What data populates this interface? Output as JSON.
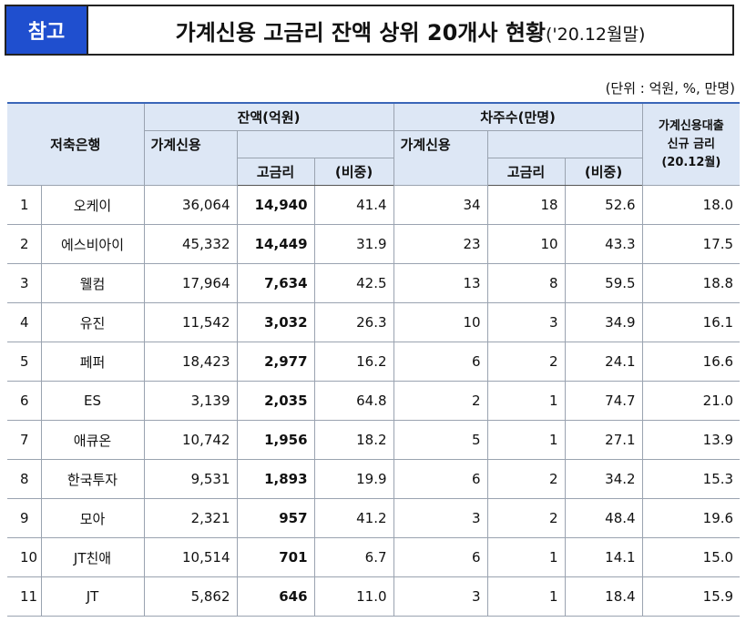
{
  "header": {
    "tag": "참고",
    "title": "가계신용 고금리 잔액 상위 20개사 현황",
    "subtitle": "('20.12월말)",
    "unit": "(단위 : 억원, %, 만명)"
  },
  "table": {
    "columns": {
      "bank": "저축은행",
      "balance": "잔액(억원)",
      "borrowers": "차주수(만명)",
      "household": "가계신용",
      "household2": "가계신용",
      "high": "고금리",
      "share": "(비중)",
      "high2": "고금리",
      "share2": "(비중)",
      "rate": [
        "가계신용대출",
        "신규 금리",
        "(20.12월)"
      ]
    },
    "rows": [
      [
        "1",
        "오케이",
        "36,064",
        "14,940",
        "41.4",
        "34",
        "18",
        "52.6",
        "18.0"
      ],
      [
        "2",
        "에스비아이",
        "45,332",
        "14,449",
        "31.9",
        "23",
        "10",
        "43.3",
        "17.5"
      ],
      [
        "3",
        "웰컴",
        "17,964",
        "7,634",
        "42.5",
        "13",
        "8",
        "59.5",
        "18.8"
      ],
      [
        "4",
        "유진",
        "11,542",
        "3,032",
        "26.3",
        "10",
        "3",
        "34.9",
        "16.1"
      ],
      [
        "5",
        "페퍼",
        "18,423",
        "2,977",
        "16.2",
        "6",
        "2",
        "24.1",
        "16.6"
      ],
      [
        "6",
        "ES",
        "3,139",
        "2,035",
        "64.8",
        "2",
        "1",
        "74.7",
        "21.0"
      ],
      [
        "7",
        "애큐온",
        "10,742",
        "1,956",
        "18.2",
        "5",
        "1",
        "27.1",
        "13.9"
      ],
      [
        "8",
        "한국투자",
        "9,531",
        "1,893",
        "19.9",
        "6",
        "2",
        "34.2",
        "15.3"
      ],
      [
        "9",
        "모아",
        "2,321",
        "957",
        "41.2",
        "3",
        "2",
        "48.4",
        "19.6"
      ],
      [
        "10",
        "JT친애",
        "10,514",
        "701",
        "6.7",
        "6",
        "1",
        "14.1",
        "15.0"
      ],
      [
        "11",
        "JT",
        "5,862",
        "646",
        "11.0",
        "3",
        "1",
        "18.4",
        "15.9"
      ]
    ]
  }
}
